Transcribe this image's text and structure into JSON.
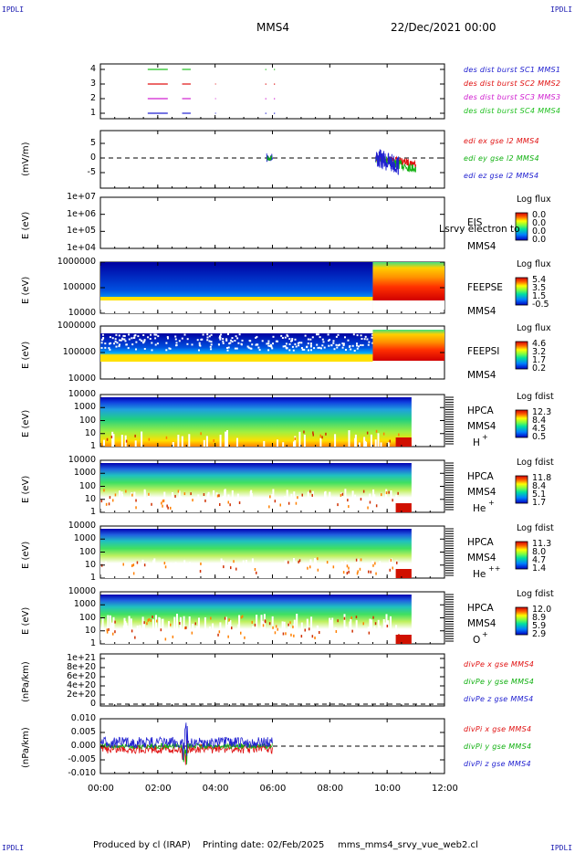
{
  "corner_marks": {
    "tl": "IPDLI",
    "tr": "IPDLI",
    "bl": "IPDLI",
    "br": "IPDLI"
  },
  "header": {
    "spacecraft": "MMS4",
    "datetime": "22/Dec/2021 00:00"
  },
  "time_axis": {
    "ticks": [
      "00:00",
      "02:00",
      "04:00",
      "06:00",
      "08:00",
      "10:00",
      "12:00"
    ]
  },
  "panels": [
    {
      "id": "des-dist",
      "ylabel": "",
      "yticks": [
        "4",
        "3",
        "2",
        "1"
      ],
      "legend": [
        {
          "text": "des dist burst SC1 MMS1",
          "color": "#2020d0"
        },
        {
          "text": "des dist burst SC2 MMS2",
          "color": "#e01010"
        },
        {
          "text": "des dist burst SC3 MMS3",
          "color": "#d020d0"
        },
        {
          "text": "des dist burst SC4 MMS4",
          "color": "#20c020"
        }
      ]
    },
    {
      "id": "edi",
      "ylabel": "(mV/m)",
      "yticks": [
        "5",
        "0",
        "-5"
      ],
      "legend": [
        {
          "text": "edi ex gse l2 MMS4",
          "color": "#e01010"
        },
        {
          "text": "edi ey gse l2 MMS4",
          "color": "#10b010"
        },
        {
          "text": "edi ez gse l2 MMS4",
          "color": "#2020d0"
        }
      ]
    },
    {
      "id": "eis",
      "ylabel": "E (eV)",
      "yticks": [
        "1e+07",
        "1e+06",
        "1e+05",
        "1e+04"
      ],
      "instrument": "EIS",
      "overlay_text": "l srvy electron to",
      "sc": "MMS4",
      "cb_title": "Log flux",
      "cb_ticks": [
        "0.0",
        "0.0",
        "0.0",
        "0.0"
      ]
    },
    {
      "id": "feepse",
      "ylabel": "E (eV)",
      "yticks": [
        "1000000",
        "100000",
        "10000"
      ],
      "instrument": "FEEPSE",
      "sc": "MMS4",
      "cb_title": "Log flux",
      "cb_ticks": [
        "5.4",
        "3.5",
        "1.5",
        "-0.5"
      ]
    },
    {
      "id": "feepsi",
      "ylabel": "E (eV)",
      "yticks": [
        "1000000",
        "100000",
        "10000"
      ],
      "instrument": "FEEPSI",
      "sc": "MMS4",
      "cb_title": "Log flux",
      "cb_ticks": [
        "4.6",
        "3.2",
        "1.7",
        "0.2"
      ]
    },
    {
      "id": "hpca-h",
      "ylabel": "E (eV)",
      "yticks": [
        "10000",
        "1000",
        "100",
        "10",
        "1"
      ],
      "instrument": "HPCA",
      "sc": "MMS4",
      "species": "H",
      "charge": "+",
      "cb_title": "Log fdist",
      "cb_ticks": [
        "12.3",
        "8.4",
        "4.5",
        "0.5"
      ]
    },
    {
      "id": "hpca-he",
      "ylabel": "E (eV)",
      "yticks": [
        "10000",
        "1000",
        "100",
        "10",
        "1"
      ],
      "instrument": "HPCA",
      "sc": "MMS4",
      "species": "He",
      "charge": "+",
      "cb_title": "Log fdist",
      "cb_ticks": [
        "11.8",
        "8.4",
        "5.1",
        "1.7"
      ]
    },
    {
      "id": "hpca-he2",
      "ylabel": "E (eV)",
      "yticks": [
        "10000",
        "1000",
        "100",
        "10",
        "1"
      ],
      "instrument": "HPCA",
      "sc": "MMS4",
      "species": "He",
      "charge": "++",
      "cb_title": "Log fdist",
      "cb_ticks": [
        "11.3",
        "8.0",
        "4.7",
        "1.4"
      ]
    },
    {
      "id": "hpca-o",
      "ylabel": "E (eV)",
      "yticks": [
        "10000",
        "1000",
        "100",
        "10",
        "1"
      ],
      "instrument": "HPCA",
      "sc": "MMS4",
      "species": "O",
      "charge": "+",
      "cb_title": "Log fdist",
      "cb_ticks": [
        "12.0",
        "8.9",
        "5.9",
        "2.9"
      ]
    },
    {
      "id": "divpe",
      "ylabel": "(nPa/km)",
      "yticks": [
        "1e+21",
        "8e+20",
        "6e+20",
        "4e+20",
        "2e+20",
        "0"
      ],
      "legend": [
        {
          "text": "divPe x gse MMS4",
          "color": "#e01010"
        },
        {
          "text": "divPe y gse MMS4",
          "color": "#10b010"
        },
        {
          "text": "divPe z gse MMS4",
          "color": "#2020d0"
        }
      ]
    },
    {
      "id": "divpi",
      "ylabel": "(nPa/km)",
      "yticks": [
        "0.010",
        "0.005",
        "0.000",
        "-0.005",
        "-0.010"
      ],
      "legend": [
        {
          "text": "divPi x gse MMS4",
          "color": "#e01010"
        },
        {
          "text": "divPi y gse MMS4",
          "color": "#10b010"
        },
        {
          "text": "divPi z gse MMS4",
          "color": "#2020d0"
        }
      ]
    }
  ],
  "footer": {
    "produced_by": "Produced by cl (IRAP)",
    "printing_date": "Printing date: 02/Feb/2025",
    "filename": "mms_mms4_srvy_vue_web2.cl"
  },
  "chart_data": {
    "type": "heatmap",
    "x_range_hours": [
      0,
      12
    ],
    "des_dist_bursts": {
      "mms1": [
        [
          1.6,
          2.4
        ],
        [
          2.8,
          3.1
        ],
        [
          5.8,
          5.85
        ],
        [
          6.05,
          6.1
        ]
      ],
      "mms4": [
        [
          1.6,
          2.4
        ],
        [
          2.8,
          3.1
        ],
        [
          5.8,
          5.85
        ],
        [
          6.05,
          6.1
        ]
      ]
    },
    "edi_activity_hours": [
      [
        5.8,
        6.0
      ],
      [
        9.6,
        11.0
      ]
    ],
    "feepse_hot_region_start_hours": 9.5,
    "feepsi_hot_region_start_hours": 9.5,
    "hpca_data_end_hours": 10.85,
    "divpi_data_end_hours": 6.0,
    "colors": {
      "low": "#0000c8",
      "mid": "#20d050",
      "high": "#ffd000",
      "max": "#cc0000"
    }
  }
}
